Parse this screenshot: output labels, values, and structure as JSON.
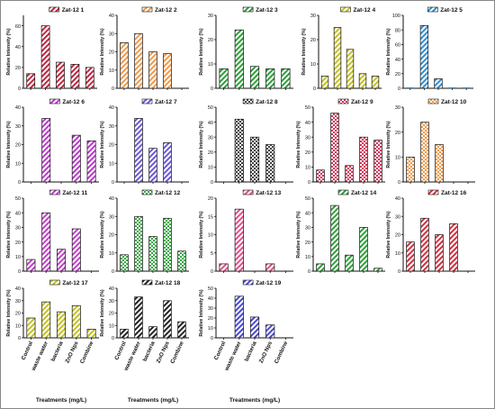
{
  "figure": {
    "categories": [
      "Control",
      "waste water",
      "bacteria",
      "ZnO Nps",
      "Combine"
    ],
    "ylabel": "Relative Intensity (%)",
    "xlabel": "Treatments (mg/L)"
  },
  "chart_data": [
    {
      "type": "bar",
      "title": "Zat-12 1",
      "pattern": "diag",
      "color": "#c0263f",
      "ylim": [
        0,
        70
      ],
      "values": [
        14,
        60,
        25,
        23,
        20
      ],
      "yticks": [
        0,
        20,
        40,
        60
      ]
    },
    {
      "type": "bar",
      "title": "Zat-12 2",
      "pattern": "diag",
      "color": "#f09a4a",
      "ylim": [
        0,
        40
      ],
      "values": [
        25,
        30,
        20,
        19,
        null
      ],
      "yticks": [
        0,
        10,
        20,
        30,
        40
      ]
    },
    {
      "type": "bar",
      "title": "Zat-12 3",
      "pattern": "diag",
      "color": "#2e9e3a",
      "ylim": [
        0,
        30
      ],
      "values": [
        8,
        24,
        9,
        8,
        8
      ],
      "yticks": [
        0,
        10,
        20,
        30
      ]
    },
    {
      "type": "bar",
      "title": "Zat-12 4",
      "pattern": "diag",
      "color": "#c4c020",
      "ylim": [
        0,
        30
      ],
      "values": [
        5,
        25,
        16,
        6,
        5
      ],
      "yticks": [
        0,
        10,
        20,
        30
      ]
    },
    {
      "type": "bar",
      "title": "Zat-12 5",
      "pattern": "diag",
      "color": "#2f8fd0",
      "ylim": [
        0,
        100
      ],
      "values": [
        0,
        86,
        13,
        0,
        0
      ],
      "yticks": [
        0,
        20,
        40,
        60,
        80,
        100
      ]
    },
    {
      "type": "bar",
      "title": "Zat-12 6",
      "pattern": "diag",
      "color": "#b83ac8",
      "ylim": [
        0,
        40
      ],
      "values": [
        null,
        34,
        null,
        25,
        22
      ],
      "yticks": [
        0,
        10,
        20,
        30,
        40
      ]
    },
    {
      "type": "bar",
      "title": "Zat-12 7",
      "pattern": "diag",
      "color": "#6a5ad8",
      "ylim": [
        0,
        40
      ],
      "values": [
        null,
        34,
        18,
        21,
        null
      ],
      "yticks": [
        0,
        10,
        20,
        30,
        40
      ]
    },
    {
      "type": "bar",
      "title": "Zat-12 8",
      "pattern": "check",
      "color": "#444444",
      "ylim": [
        0,
        50
      ],
      "values": [
        null,
        42,
        30,
        25,
        null
      ],
      "yticks": [
        0,
        10,
        20,
        30,
        40,
        50
      ]
    },
    {
      "type": "bar",
      "title": "Zat-12 9",
      "pattern": "check",
      "color": "#d03a5a",
      "ylim": [
        0,
        50
      ],
      "values": [
        8,
        46,
        11,
        30,
        28
      ],
      "yticks": [
        0,
        10,
        20,
        30,
        40,
        50
      ]
    },
    {
      "type": "bar",
      "title": "Zat-12 10",
      "pattern": "check",
      "color": "#f09a4a",
      "ylim": [
        0,
        30
      ],
      "values": [
        10,
        24,
        15,
        null,
        null
      ],
      "yticks": [
        0,
        10,
        20,
        30
      ]
    },
    {
      "type": "bar",
      "title": "Zat-12 11",
      "pattern": "diag",
      "color": "#c040c8",
      "ylim": [
        0,
        50
      ],
      "values": [
        8,
        40,
        15,
        29,
        null
      ],
      "yticks": [
        0,
        10,
        20,
        30,
        40,
        50
      ]
    },
    {
      "type": "bar",
      "title": "Zat-12 12",
      "pattern": "check",
      "color": "#3ca848",
      "ylim": [
        0,
        40
      ],
      "values": [
        9,
        30,
        19,
        29,
        11
      ],
      "yticks": [
        0,
        10,
        20,
        30,
        40
      ]
    },
    {
      "type": "bar",
      "title": "Zat-12 13",
      "pattern": "diag",
      "color": "#e0508a",
      "ylim": [
        0,
        20
      ],
      "values": [
        2,
        17,
        null,
        2,
        null
      ],
      "yticks": [
        0,
        5,
        10,
        15,
        20
      ]
    },
    {
      "type": "bar",
      "title": "Zat-12 14",
      "pattern": "diag",
      "color": "#2e9e3a",
      "ylim": [
        0,
        50
      ],
      "values": [
        5,
        45,
        11,
        30,
        2
      ],
      "yticks": [
        0,
        10,
        20,
        30,
        40,
        50
      ]
    },
    {
      "type": "bar",
      "title": "Zat-12 16",
      "pattern": "diag",
      "color": "#d03040",
      "ylim": [
        0,
        40
      ],
      "values": [
        16,
        29,
        20,
        26,
        null
      ],
      "yticks": [
        0,
        10,
        20,
        30,
        40
      ]
    },
    {
      "type": "bar",
      "title": "Zat-12 17",
      "pattern": "diag",
      "color": "#c4c020",
      "ylim": [
        0,
        40
      ],
      "values": [
        16,
        29,
        21,
        26,
        7
      ],
      "yticks": [
        0,
        10,
        20,
        30,
        40
      ]
    },
    {
      "type": "bar",
      "title": "Zat-12 18",
      "pattern": "diag",
      "color": "#222222",
      "ylim": [
        0,
        40
      ],
      "values": [
        7,
        33,
        9,
        30,
        13
      ],
      "yticks": [
        0,
        10,
        20,
        30,
        40
      ]
    },
    {
      "type": "bar",
      "title": "Zat-12 19",
      "pattern": "diag",
      "color": "#4a4ad0",
      "ylim": [
        0,
        50
      ],
      "values": [
        null,
        42,
        21,
        13,
        null
      ],
      "yticks": [
        0,
        10,
        20,
        30,
        40,
        50
      ]
    }
  ]
}
